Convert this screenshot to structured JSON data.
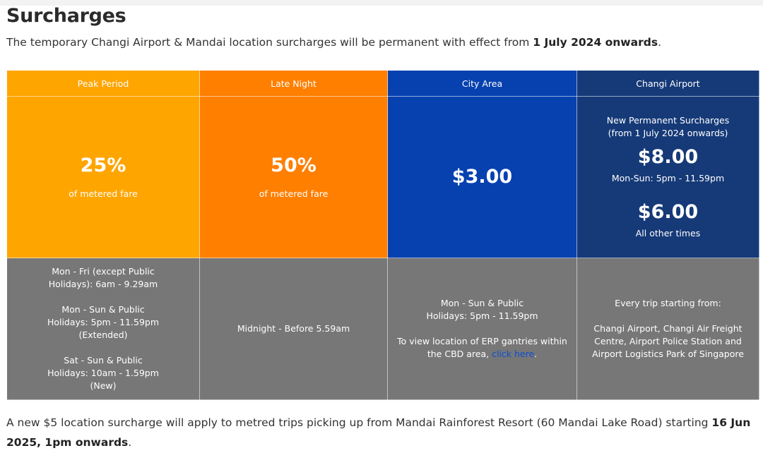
{
  "title": "Surcharges",
  "intro": {
    "text": "The temporary Changi Airport & Mandai location surcharges will be permanent with effect from ",
    "bold": "1 July 2024 onwards",
    "end": "."
  },
  "table": {
    "headers": [
      "Peak Period",
      "Late Night",
      "City Area",
      "Changi Airport"
    ],
    "peak": {
      "value": "25%",
      "note": "of metered fare"
    },
    "late": {
      "value": "50%",
      "note": "of metered fare"
    },
    "city": {
      "value": "$3.00"
    },
    "changi": {
      "line1": "New Permanent Surcharges",
      "line2": "(from 1 July 2024 onwards)",
      "value1": "$8.00",
      "note1": "Mon-Sun: 5pm - 11.59pm",
      "value2": "$6.00",
      "note2": "All other times"
    },
    "peak_times": [
      "Mon - Fri (except Public",
      "Holidays): 6am - 9.29am",
      "Mon - Sun & Public",
      "Holidays: 5pm - 11.59pm",
      "(Extended)",
      "Sat - Sun & Public",
      "Holidays: 10am - 1.59pm",
      "(New)"
    ],
    "late_times": "Midnight - Before 5.59am",
    "city_times": {
      "l1": "Mon - Sun & Public",
      "l2": "Holidays: 5pm - 11.59pm",
      "l3": "To view location of ERP gantries within",
      "l4": "the CBD area, ",
      "link": "click here",
      "end": "."
    },
    "changi_times": {
      "l1": "Every trip starting from:",
      "l2": "Changi Airport, Changi Air Freight",
      "l3": "Centre, Airport Police Station and",
      "l4": "Airport Logistics Park of Singapore"
    }
  },
  "footer": {
    "text": "A new $5 location surcharge will apply to metred trips picking up from Mandai Rainforest Resort (60 Mandai Lake Road) starting ",
    "bold": "16 Jun 2025, 1pm onwards",
    "end": "."
  },
  "colors": {
    "peak": "#ffa500",
    "late_night": "#ff7f00",
    "city_area": "#0741b0",
    "changi_airport": "#163a78",
    "times_row": "#777777",
    "link": "#0b4fd1"
  }
}
